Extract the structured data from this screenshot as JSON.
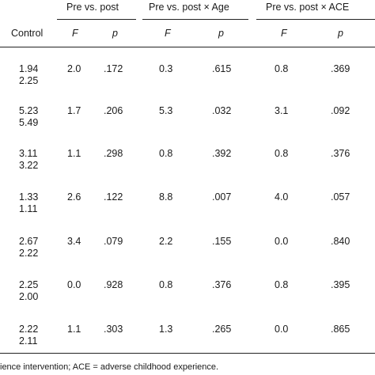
{
  "header": {
    "group1": "Pre vs. post",
    "group2": "Pre vs. post × Age",
    "group3": "Pre vs. post × ACE",
    "control": "Control",
    "f_label": "F",
    "p_label": "p"
  },
  "rows": [
    {
      "control_1": "1.94",
      "control_2": "2.25",
      "f1": "2.0",
      "p1": ".172",
      "f2": "0.3",
      "p2": ".615",
      "f3": "0.8",
      "p3": ".369"
    },
    {
      "control_1": "5.23",
      "control_2": "5.49",
      "f1": "1.7",
      "p1": ".206",
      "f2": "5.3",
      "p2": ".032",
      "f3": "3.1",
      "p3": ".092"
    },
    {
      "control_1": "3.11",
      "control_2": "3.22",
      "f1": "1.1",
      "p1": ".298",
      "f2": "0.8",
      "p2": ".392",
      "f3": "0.8",
      "p3": ".376"
    },
    {
      "control_1": "1.33",
      "control_2": "1.11",
      "f1": "2.6",
      "p1": ".122",
      "f2": "8.8",
      "p2": ".007",
      "f3": "4.0",
      "p3": ".057"
    },
    {
      "control_1": "2.67",
      "control_2": "2.22",
      "f1": "3.4",
      "p1": ".079",
      "f2": "2.2",
      "p2": ".155",
      "f3": "0.0",
      "p3": ".840"
    },
    {
      "control_1": "2.25",
      "control_2": "2.00",
      "f1": "0.0",
      "p1": ".928",
      "f2": "0.8",
      "p2": ".376",
      "f3": "0.8",
      "p3": ".395"
    },
    {
      "control_1": "2.22",
      "control_2": "2.11",
      "f1": "1.1",
      "p1": ".303",
      "f2": "1.3",
      "p2": ".265",
      "f3": "0.0",
      "p3": ".865"
    }
  ],
  "footnote": "ience intervention; ACE = adverse childhood experience."
}
